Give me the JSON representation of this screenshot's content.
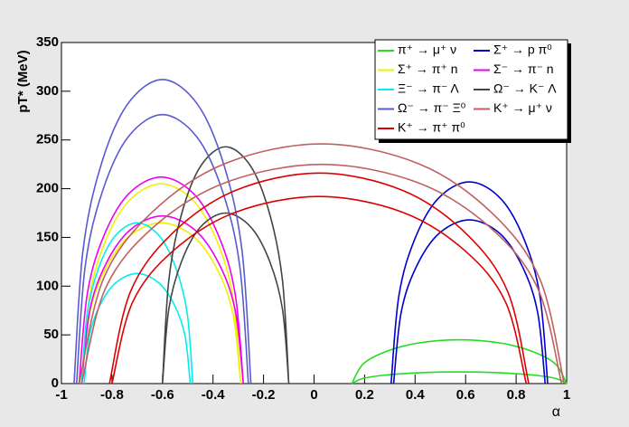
{
  "chart_data": {
    "type": "line",
    "x_label": "α",
    "y_label": "pT* (MeV)",
    "xlim": [
      -1,
      1
    ],
    "ylim": [
      0,
      350
    ],
    "xticks": [
      -1,
      -0.8,
      -0.6,
      -0.4,
      -0.2,
      0,
      0.2,
      0.4,
      0.6,
      0.8,
      1
    ],
    "yticks": [
      0,
      50,
      100,
      150,
      200,
      250,
      300,
      350
    ],
    "series": [
      {
        "name": "π⁺ → μ⁺ ν",
        "color": "#22dd22",
        "x": [
          0.15,
          0.1925,
          0.2775,
          0.405,
          0.575,
          0.745,
          0.8725,
          0.9575,
          1.0,
          null,
          0.15,
          0.1925,
          0.2775,
          0.405,
          0.575,
          0.745,
          0.8725,
          0.9575,
          1.0
        ],
        "values": [
          0,
          19.6,
          32.1,
          41.3,
          45,
          41.3,
          32.1,
          19.6,
          0,
          null,
          0,
          5.2,
          8.6,
          11,
          12,
          11,
          8.6,
          5.2,
          0
        ]
      },
      {
        "name": "Σ⁺ → p π⁰",
        "color": "#0000cc",
        "x": [
          0.305,
          0.336,
          0.398,
          0.491,
          0.615,
          0.739,
          0.832,
          0.894,
          0.925,
          null,
          0.315,
          0.345,
          0.405,
          0.495,
          0.615,
          0.735,
          0.825,
          0.885,
          0.915
        ],
        "values": [
          0,
          90.3,
          147.8,
          189.8,
          207,
          189.8,
          147.8,
          90.3,
          0,
          null,
          0,
          73.2,
          120,
          154.1,
          168,
          154.1,
          120,
          73.2,
          0
        ]
      },
      {
        "name": "Σ⁺ → π⁺ n",
        "color": "#f0f000",
        "x": [
          -0.92,
          -0.8885,
          -0.8255,
          -0.731,
          -0.605,
          -0.479,
          -0.3845,
          -0.3215,
          -0.29,
          null,
          -0.92,
          -0.8885,
          -0.8255,
          -0.731,
          -0.605,
          -0.479,
          -0.3845,
          -0.3215,
          -0.29
        ],
        "values": [
          0,
          89.4,
          146.4,
          188,
          205,
          188,
          146.4,
          89.4,
          0,
          null,
          0,
          71.9,
          117.8,
          151.3,
          165,
          151.3,
          117.8,
          71.9,
          0
        ]
      },
      {
        "name": "Σ⁻ → π⁻ n",
        "color": "#ee00ee",
        "x": [
          -0.93,
          -0.8975,
          -0.8325,
          -0.735,
          -0.605,
          -0.475,
          -0.3775,
          -0.3125,
          -0.28,
          null,
          -0.92,
          -0.888,
          -0.824,
          -0.728,
          -0.6,
          -0.472,
          -0.376,
          -0.312,
          -0.28
        ],
        "values": [
          0,
          92.4,
          151.4,
          194.4,
          212,
          194.4,
          151.4,
          92.4,
          0,
          null,
          0,
          75,
          122.8,
          157.7,
          172,
          157.7,
          122.8,
          75,
          0
        ]
      },
      {
        "name": "Ξ⁻ → π⁻ Λ",
        "color": "#00eeee",
        "x": [
          -0.92,
          -0.898,
          -0.854,
          -0.788,
          -0.7,
          -0.612,
          -0.546,
          -0.502,
          -0.48,
          null,
          -0.91,
          -0.889,
          -0.847,
          -0.784,
          -0.7,
          -0.616,
          -0.553,
          -0.511,
          -0.49
        ],
        "values": [
          0,
          71.9,
          117.8,
          151.3,
          165,
          151.3,
          117.8,
          71.9,
          0,
          null,
          0,
          49.3,
          80.7,
          103.6,
          113,
          103.6,
          80.7,
          49.3,
          0
        ]
      },
      {
        "name": "Ω⁻ → K⁻ Λ",
        "color": "#444444",
        "x": [
          -0.6,
          -0.575,
          -0.525,
          -0.45,
          -0.35,
          -0.25,
          -0.175,
          -0.125,
          -0.1,
          null,
          -0.6,
          -0.575,
          -0.525,
          -0.45,
          -0.35,
          -0.25,
          -0.175,
          -0.125,
          -0.1
        ],
        "values": [
          0,
          105.9,
          173.5,
          222.8,
          243,
          222.8,
          173.5,
          105.9,
          0,
          null,
          0,
          76.3,
          125,
          160.5,
          175,
          160.5,
          125,
          76.3,
          0
        ]
      },
      {
        "name": "Ω⁻ → π⁻ Ξ⁰",
        "color": "#5a5ad0",
        "x": [
          -0.95,
          -0.915,
          -0.845,
          -0.74,
          -0.6,
          -0.46,
          -0.355,
          -0.285,
          -0.25,
          null,
          -0.94,
          -0.906,
          -0.838,
          -0.736,
          -0.6,
          -0.464,
          -0.362,
          -0.294,
          -0.26
        ],
        "values": [
          0,
          136,
          222.8,
          286.1,
          312,
          286.1,
          222.8,
          136,
          0,
          null,
          0,
          120.3,
          197.1,
          253.1,
          276,
          253.1,
          197.1,
          120.3,
          0
        ]
      },
      {
        "name": "K⁺ → μ⁺ ν",
        "color": "#c06060",
        "x": [
          -0.93,
          -0.834,
          -0.642,
          -0.354,
          0.03,
          0.414,
          0.702,
          0.894,
          0.99,
          null,
          -0.92,
          -0.825,
          -0.635,
          -0.35,
          0.03,
          0.41,
          0.695,
          0.885,
          0.98
        ],
        "values": [
          0,
          107.3,
          175.6,
          225.6,
          246,
          225.6,
          175.6,
          107.3,
          0,
          null,
          0,
          98.1,
          160.7,
          206.3,
          225,
          206.3,
          160.7,
          98.1,
          0
        ]
      },
      {
        "name": "K⁺ → π⁺ π⁰",
        "color": "#dd0000",
        "x": [
          -0.81,
          -0.727,
          -0.561,
          -0.312,
          0.02,
          0.352,
          0.601,
          0.767,
          0.85,
          null,
          -0.8,
          -0.718,
          -0.554,
          -0.308,
          0.02,
          0.348,
          0.594,
          0.758,
          0.84
        ],
        "values": [
          0,
          94.2,
          154.2,
          198.1,
          216,
          198.1,
          154.2,
          94.2,
          0,
          null,
          0,
          83.7,
          137.1,
          176.1,
          192,
          176.1,
          137.1,
          83.7,
          0
        ]
      }
    ]
  }
}
